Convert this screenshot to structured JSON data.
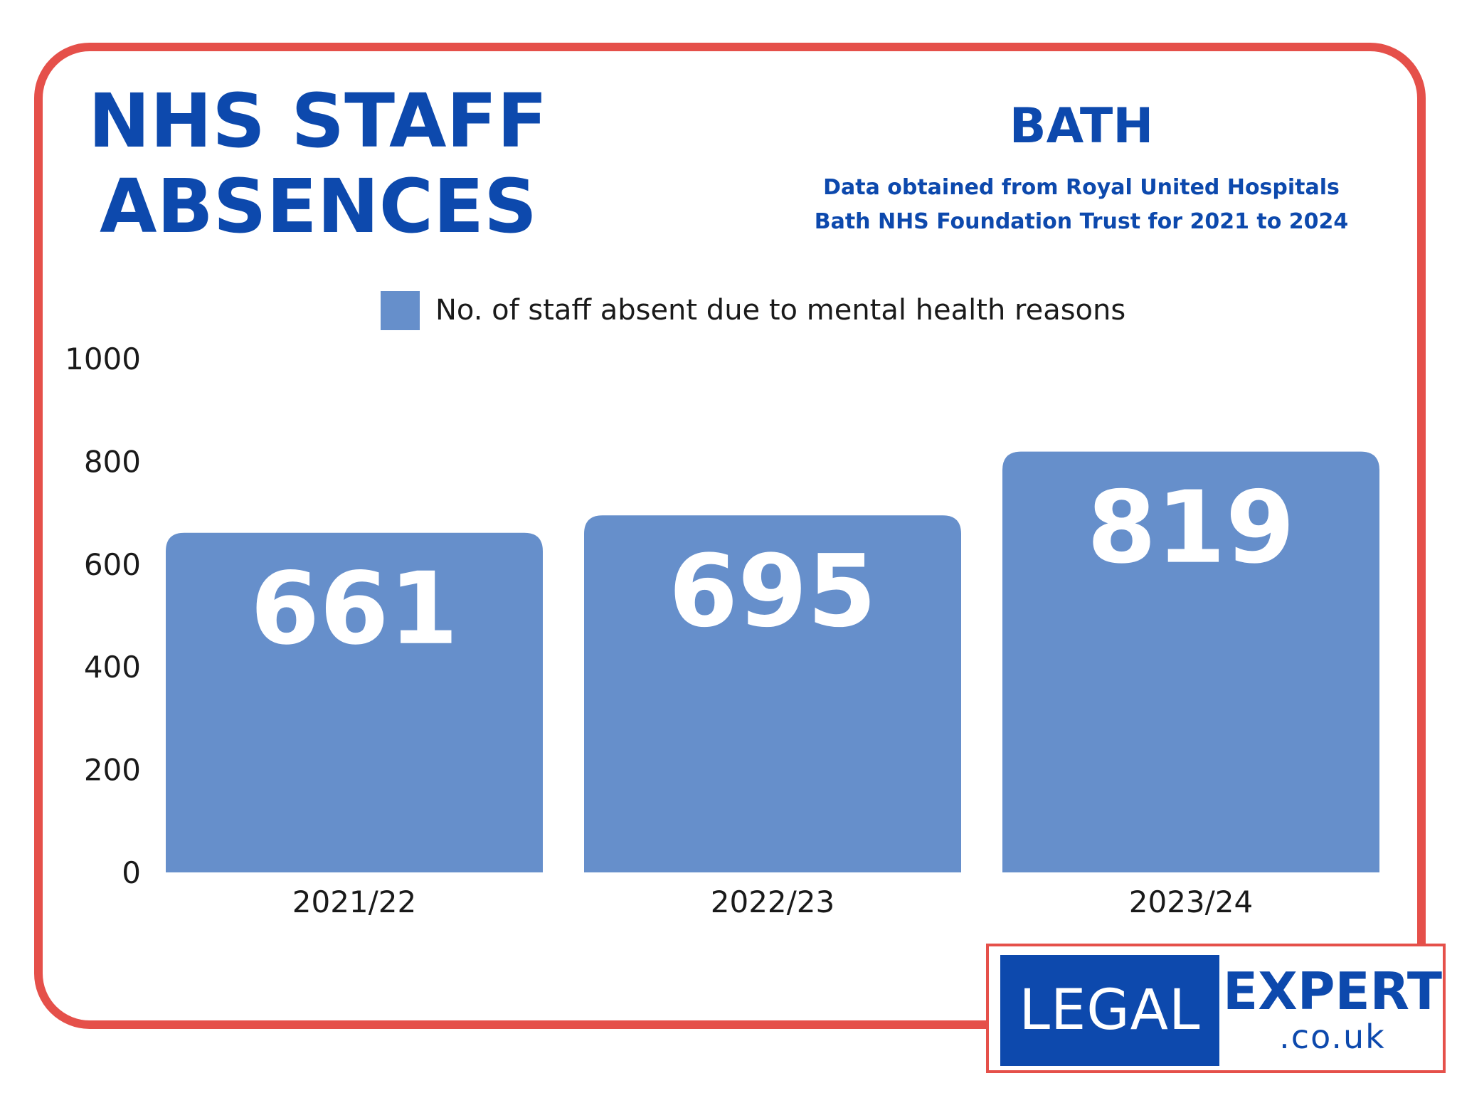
{
  "header": {
    "title_line1": "NHS STAFF",
    "title_line2": "ABSENCES",
    "region": "BATH",
    "source_line1": "Data obtained from Royal United Hospitals",
    "source_line2": "Bath NHS Foundation Trust for 2021 to 2024"
  },
  "colors": {
    "frame": "#e5504a",
    "title": "#0d49ad",
    "bar": "#668fcb",
    "bar_label": "#ffffff",
    "axis_text": "#1a1a1a"
  },
  "chart_data": {
    "type": "bar",
    "categories": [
      "2021/22",
      "2022/23",
      "2023/24"
    ],
    "series": [
      {
        "name": "No. of staff absent due to mental health reasons",
        "values": [
          661,
          695,
          819
        ]
      }
    ],
    "data_labels": [
      "661",
      "695",
      "819"
    ],
    "yticks": [
      "0",
      "200",
      "400",
      "600",
      "800",
      "1000"
    ],
    "ylim": [
      0,
      1000
    ],
    "grid": false,
    "legend_position": "top-center"
  },
  "logo": {
    "left_text": "LEGAL",
    "right_text": "EXPERT",
    "suffix": ".co.uk"
  }
}
